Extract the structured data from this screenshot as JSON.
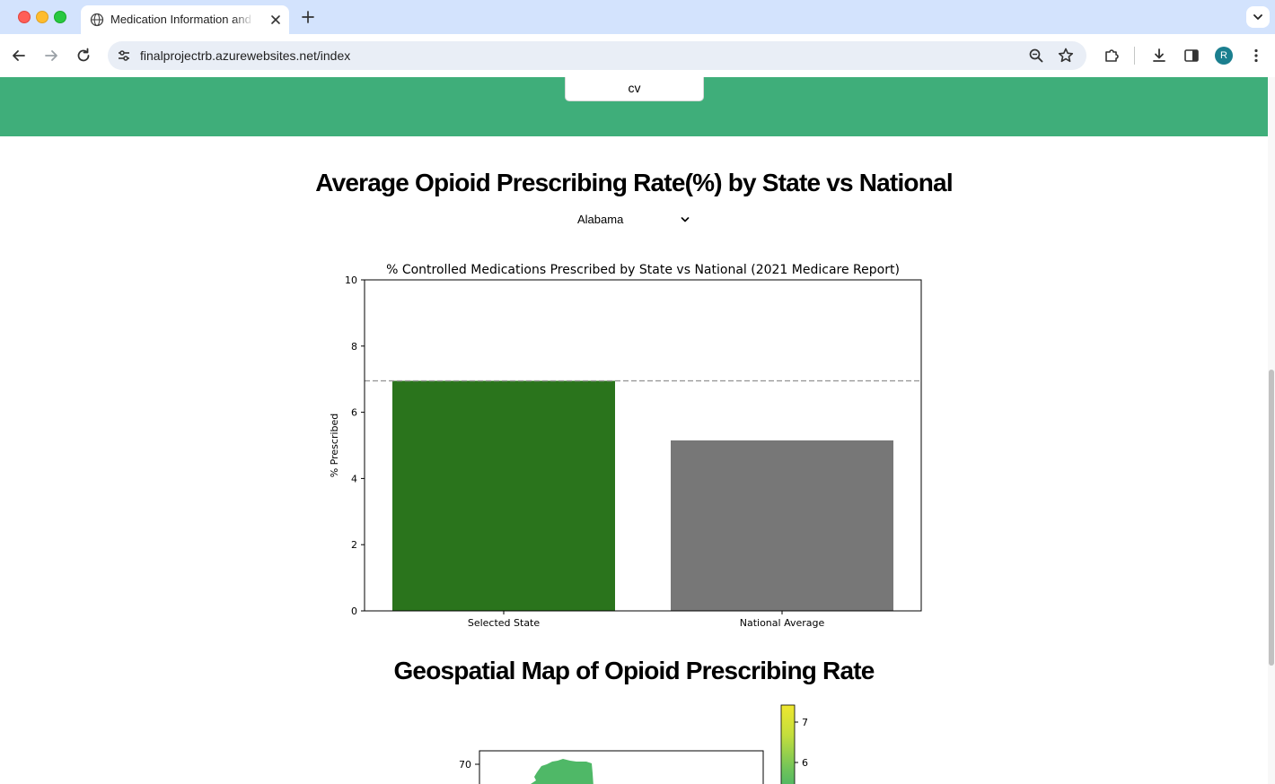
{
  "browser": {
    "tab_title": "Medication Information and S",
    "url": "finalprojectrb.azurewebsites.net/index",
    "profile_initial": "R"
  },
  "page": {
    "cv_label": "cv",
    "band_color": "#3fae7a",
    "section1_title": "Average Opioid Prescribing Rate(%) by State vs National",
    "state_select_value": "Alabama",
    "section2_title": "Geospatial Map of Opioid Prescribing Rate"
  },
  "chart_data": {
    "type": "bar",
    "title": "% Controlled Medications Prescribed by State vs National (2021 Medicare Report)",
    "xlabel": "",
    "ylabel": "% Prescribed",
    "categories": [
      "Selected State",
      "National Average"
    ],
    "values": [
      6.95,
      5.15
    ],
    "colors": [
      "#2a741c",
      "#777777"
    ],
    "reference_line": 6.95,
    "reference_line_style": "dashed",
    "ylim": [
      0,
      10
    ],
    "yticks": [
      0,
      2,
      4,
      6,
      8,
      10
    ]
  },
  "map": {
    "y_tick": "70",
    "colorbar_ticks": [
      "7",
      "6"
    ],
    "colorbar_values": [
      7,
      6
    ]
  }
}
